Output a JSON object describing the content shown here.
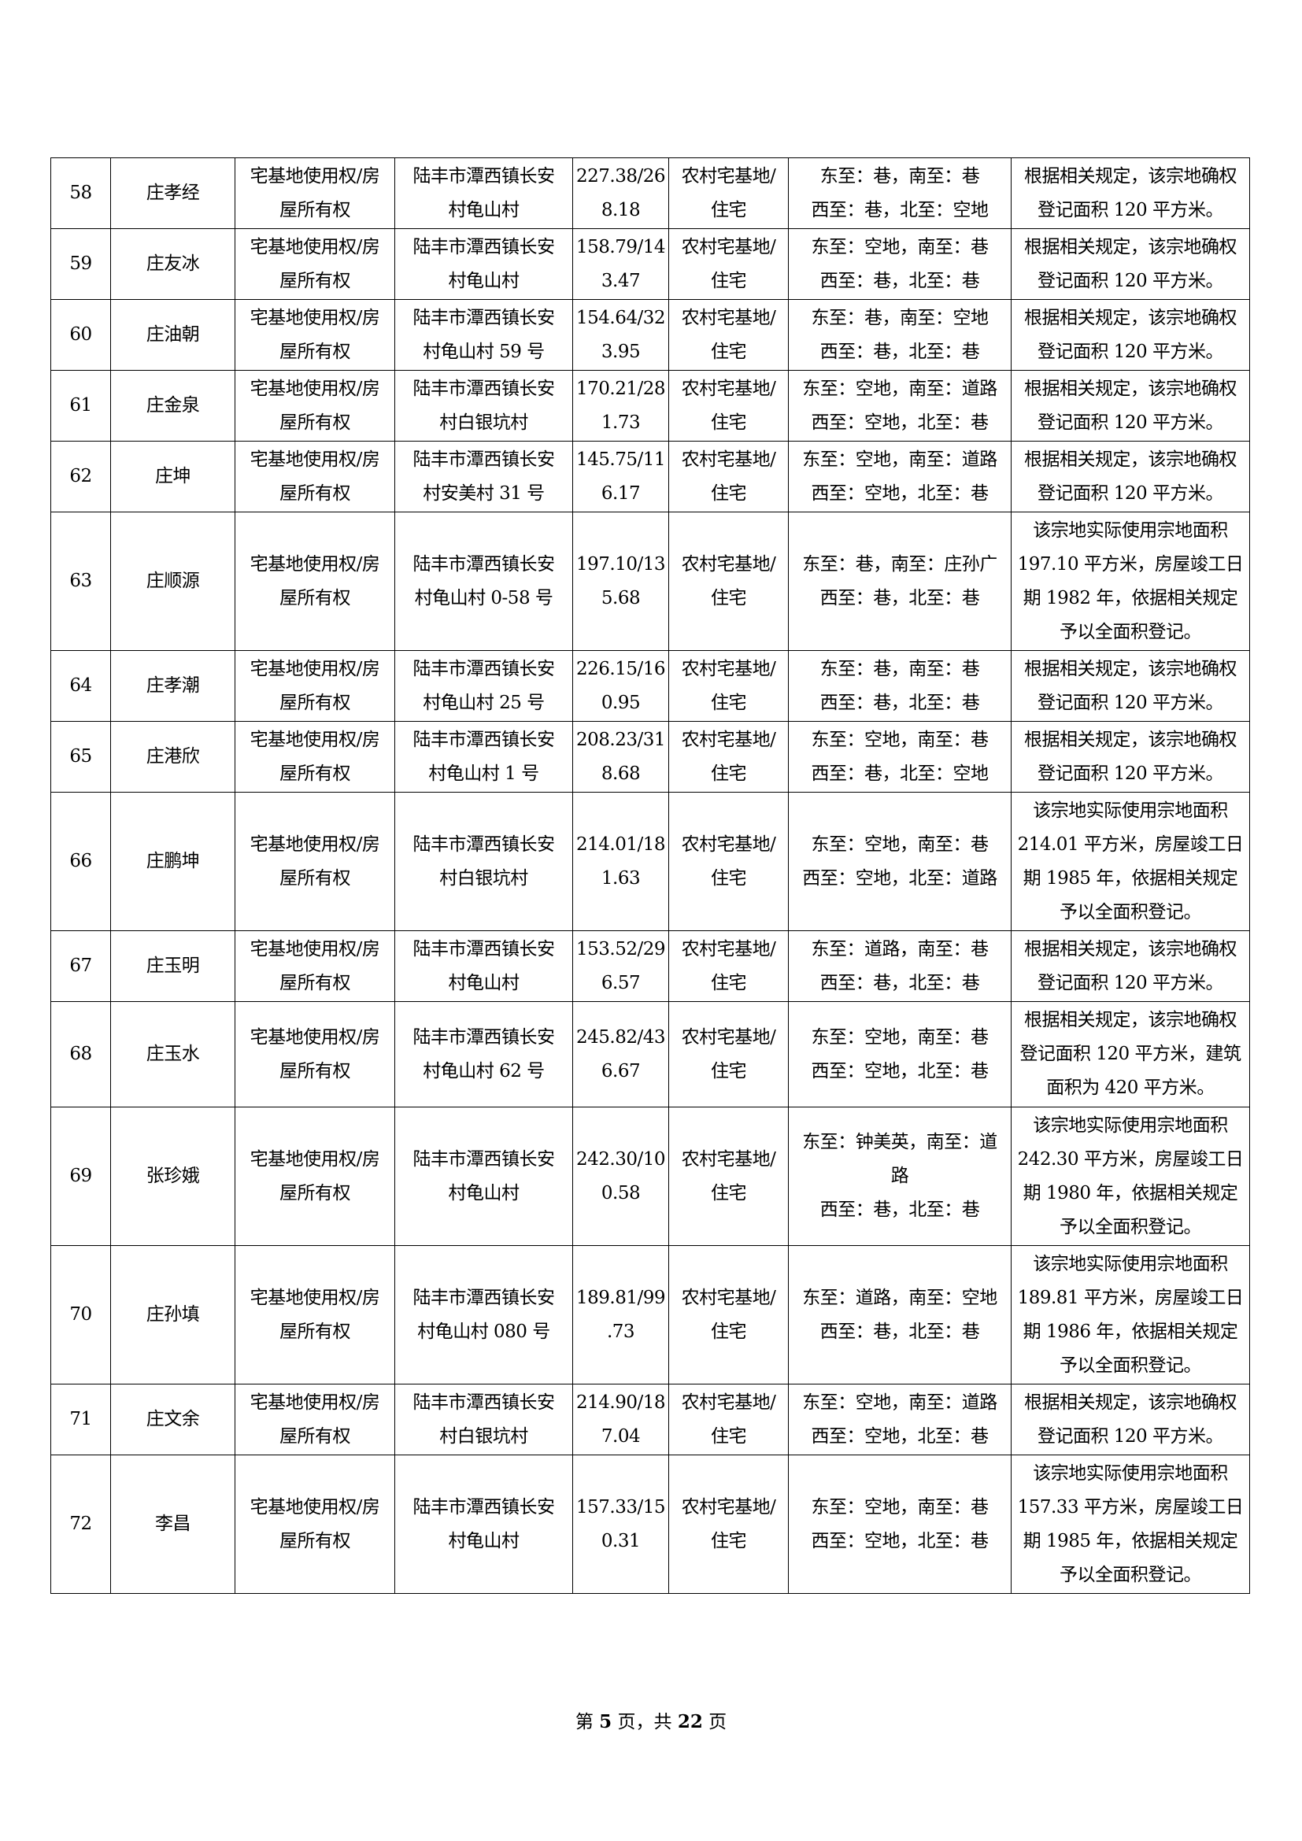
{
  "table": {
    "rows": [
      {
        "no": "58",
        "name": "庄孝经",
        "right": "宅基地使用权/房\n屋所有权",
        "location": "陆丰市潭西镇长安\n村龟山村",
        "area": "227.38/26\n8.18",
        "use": "农村宅基地/\n住宅",
        "boundary": "东至：巷，南至：巷\n西至：巷，北至：空地",
        "note": "根据相关规定，该宗地确权\n登记面积 120 平方米。"
      },
      {
        "no": "59",
        "name": "庄友冰",
        "right": "宅基地使用权/房\n屋所有权",
        "location": "陆丰市潭西镇长安\n村龟山村",
        "area": "158.79/14\n3.47",
        "use": "农村宅基地/\n住宅",
        "boundary": "东至：空地，南至：巷\n西至：巷，北至：巷",
        "note": "根据相关规定，该宗地确权\n登记面积 120 平方米。"
      },
      {
        "no": "60",
        "name": "庄油朝",
        "right": "宅基地使用权/房\n屋所有权",
        "location": "陆丰市潭西镇长安\n村龟山村 59 号",
        "area": "154.64/32\n3.95",
        "use": "农村宅基地/\n住宅",
        "boundary": "东至：巷，南至：空地\n西至：巷，北至：巷",
        "note": "根据相关规定，该宗地确权\n登记面积 120 平方米。"
      },
      {
        "no": "61",
        "name": "庄金泉",
        "right": "宅基地使用权/房\n屋所有权",
        "location": "陆丰市潭西镇长安\n村白银坑村",
        "area": "170.21/28\n1.73",
        "use": "农村宅基地/\n住宅",
        "boundary": "东至：空地，南至：道路\n西至：空地，北至：巷",
        "note": "根据相关规定，该宗地确权\n登记面积 120 平方米。"
      },
      {
        "no": "62",
        "name": "庄坤",
        "right": "宅基地使用权/房\n屋所有权",
        "location": "陆丰市潭西镇长安\n村安美村 31 号",
        "area": "145.75/11\n6.17",
        "use": "农村宅基地/\n住宅",
        "boundary": "东至：空地，南至：道路\n西至：空地，北至：巷",
        "note": "根据相关规定，该宗地确权\n登记面积 120 平方米。"
      },
      {
        "no": "63",
        "name": "庄顺源",
        "right": "宅基地使用权/房\n屋所有权",
        "location": "陆丰市潭西镇长安\n村龟山村 0-58 号",
        "area": "197.10/13\n5.68",
        "use": "农村宅基地/\n住宅",
        "boundary": "东至：巷，南至：庄孙广\n西至：巷，北至：巷",
        "note": "该宗地实际使用宗地面积\n197.10 平方米，房屋竣工日\n期 1982 年，依据相关规定\n予以全面积登记。"
      },
      {
        "no": "64",
        "name": "庄孝潮",
        "right": "宅基地使用权/房\n屋所有权",
        "location": "陆丰市潭西镇长安\n村龟山村 25 号",
        "area": "226.15/16\n0.95",
        "use": "农村宅基地/\n住宅",
        "boundary": "东至：巷，南至：巷\n西至：巷，北至：巷",
        "note": "根据相关规定，该宗地确权\n登记面积 120 平方米。"
      },
      {
        "no": "65",
        "name": "庄港欣",
        "right": "宅基地使用权/房\n屋所有权",
        "location": "陆丰市潭西镇长安\n村龟山村 1 号",
        "area": "208.23/31\n8.68",
        "use": "农村宅基地/\n住宅",
        "boundary": "东至：空地，南至：巷\n西至：巷，北至：空地",
        "note": "根据相关规定，该宗地确权\n登记面积 120 平方米。"
      },
      {
        "no": "66",
        "name": "庄鹏坤",
        "right": "宅基地使用权/房\n屋所有权",
        "location": "陆丰市潭西镇长安\n村白银坑村",
        "area": "214.01/18\n1.63",
        "use": "农村宅基地/\n住宅",
        "boundary": "东至：空地，南至：巷\n西至：空地，北至：道路",
        "note": "该宗地实际使用宗地面积\n214.01 平方米，房屋竣工日\n期 1985 年，依据相关规定\n予以全面积登记。"
      },
      {
        "no": "67",
        "name": "庄玉明",
        "right": "宅基地使用权/房\n屋所有权",
        "location": "陆丰市潭西镇长安\n村龟山村",
        "area": "153.52/29\n6.57",
        "use": "农村宅基地/\n住宅",
        "boundary": "东至：道路，南至：巷\n西至：巷，北至：巷",
        "note": "根据相关规定，该宗地确权\n登记面积 120 平方米。"
      },
      {
        "no": "68",
        "name": "庄玉水",
        "right": "宅基地使用权/房\n屋所有权",
        "location": "陆丰市潭西镇长安\n村龟山村 62 号",
        "area": "245.82/43\n6.67",
        "use": "农村宅基地/\n住宅",
        "boundary": "东至：空地，南至：巷\n西至：空地，北至：巷",
        "note": "根据相关规定，该宗地确权\n登记面积 120 平方米，建筑\n面积为 420 平方米。"
      },
      {
        "no": "69",
        "name": "张珍娥",
        "right": "宅基地使用权/房\n屋所有权",
        "location": "陆丰市潭西镇长安\n村龟山村",
        "area": "242.30/10\n0.58",
        "use": "农村宅基地/\n住宅",
        "boundary": "东至：钟美英，南至：道\n路\n西至：巷，北至：巷",
        "note": "该宗地实际使用宗地面积\n242.30 平方米，房屋竣工日\n期 1980 年，依据相关规定\n予以全面积登记。"
      },
      {
        "no": "70",
        "name": "庄孙填",
        "right": "宅基地使用权/房\n屋所有权",
        "location": "陆丰市潭西镇长安\n村龟山村 080 号",
        "area": "189.81/99\n.73",
        "use": "农村宅基地/\n住宅",
        "boundary": "东至：道路，南至：空地\n西至：巷，北至：巷",
        "note": "该宗地实际使用宗地面积\n189.81 平方米，房屋竣工日\n期 1986 年，依据相关规定\n予以全面积登记。"
      },
      {
        "no": "71",
        "name": "庄文余",
        "right": "宅基地使用权/房\n屋所有权",
        "location": "陆丰市潭西镇长安\n村白银坑村",
        "area": "214.90/18\n7.04",
        "use": "农村宅基地/\n住宅",
        "boundary": "东至：空地，南至：道路\n西至：空地，北至：巷",
        "note": "根据相关规定，该宗地确权\n登记面积 120 平方米。"
      },
      {
        "no": "72",
        "name": "李昌",
        "right": "宅基地使用权/房\n屋所有权",
        "location": "陆丰市潭西镇长安\n村龟山村",
        "area": "157.33/15\n0.31",
        "use": "农村宅基地/\n住宅",
        "boundary": "东至：空地，南至：巷\n西至：空地，北至：巷",
        "note": "该宗地实际使用宗地面积\n157.33 平方米，房屋竣工日\n期 1985 年，依据相关规定\n予以全面积登记。"
      }
    ]
  },
  "footer": {
    "prefix": "第",
    "page": "5",
    "mid": "页，共",
    "total": "22",
    "suffix": "页"
  }
}
